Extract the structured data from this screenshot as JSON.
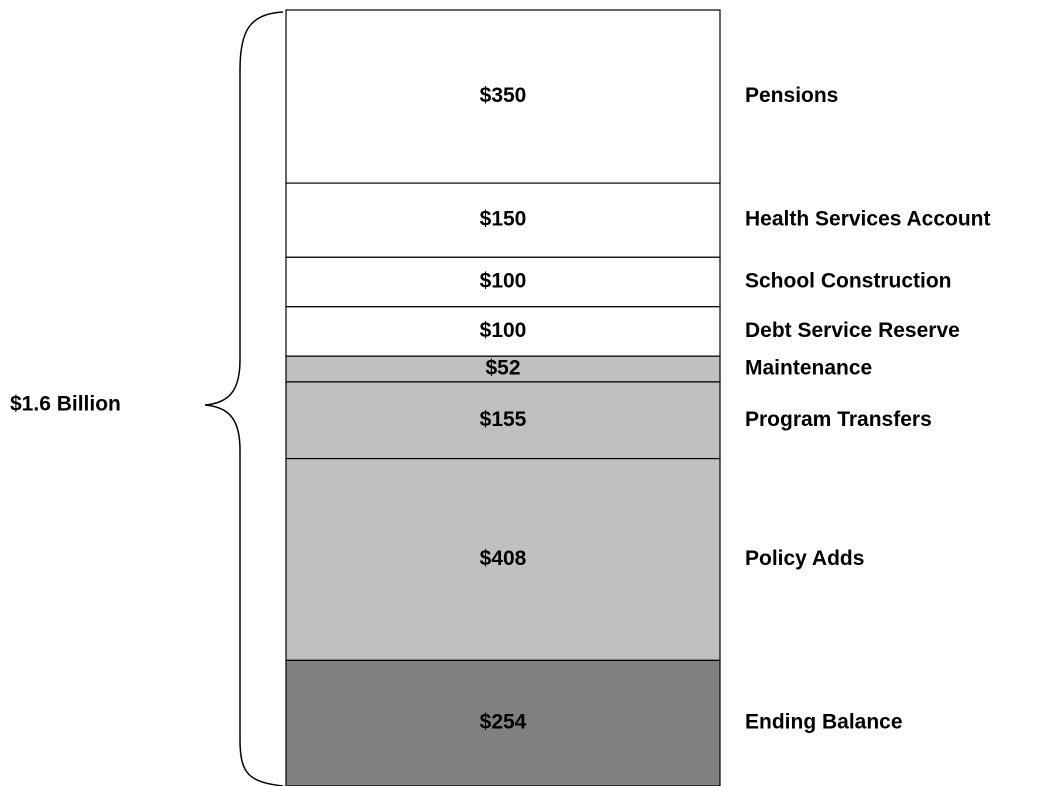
{
  "chart_data": {
    "type": "stacked-column",
    "annotation": "$1.6 Billion",
    "categories": [
      "Pensions",
      "Health Services Account",
      "School Construction",
      "Debt Service Reserve",
      "Maintenance",
      "Program Transfers",
      "Policy Adds",
      "Ending Balance"
    ],
    "values": [
      350,
      150,
      100,
      100,
      52,
      155,
      408,
      254
    ],
    "value_labels": [
      "$350",
      "$150",
      "$100",
      "$100",
      "$52",
      "$155",
      "$408",
      "$254"
    ],
    "colors": [
      "#ffffff",
      "#ffffff",
      "#ffffff",
      "#ffffff",
      "#c0c0c0",
      "#c0c0c0",
      "#c0c0c0",
      "#808080"
    ]
  }
}
